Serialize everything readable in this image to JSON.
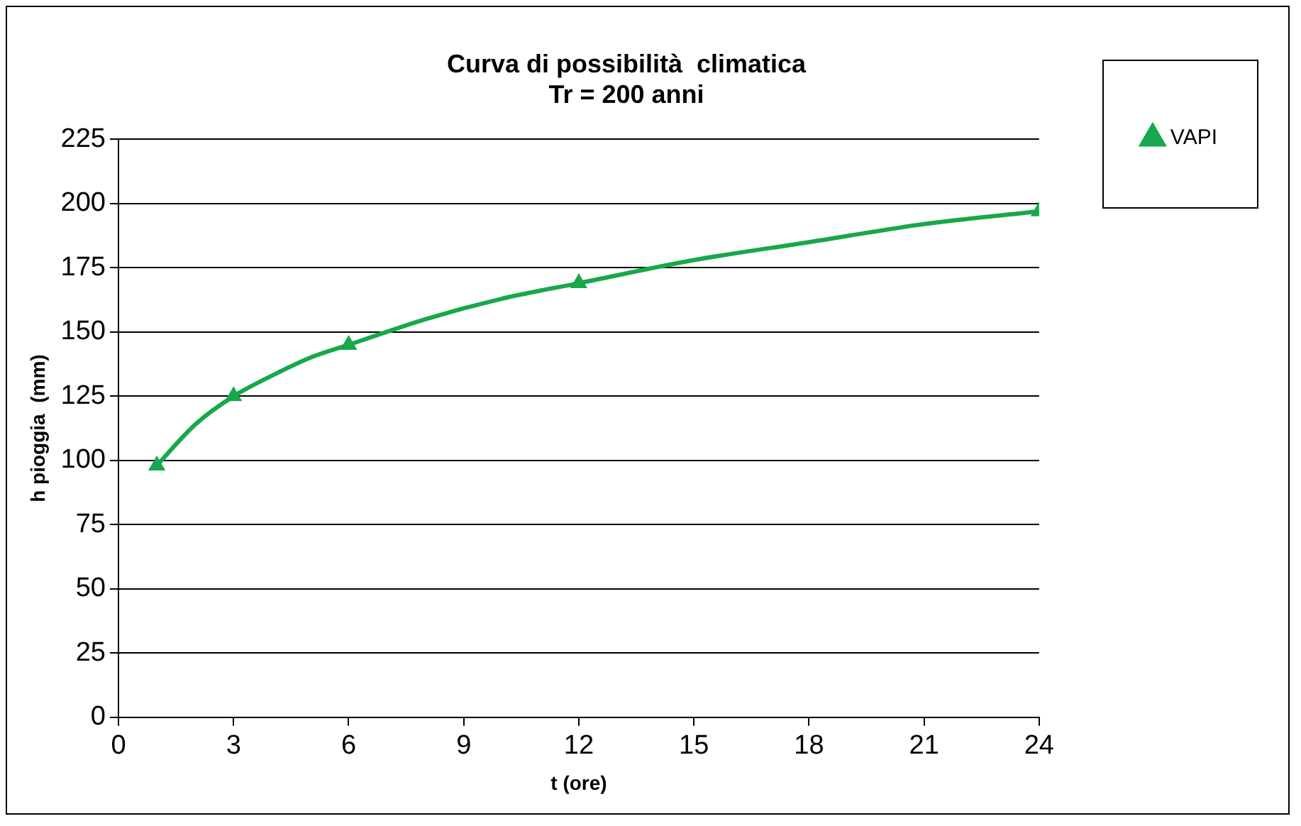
{
  "chart_data": {
    "type": "scatter",
    "title": "Curva di possibilità  climatica\nTr = 200 anni",
    "xlabel": "t (ore)",
    "ylabel": "h pioggia  (mm)",
    "series": [
      {
        "name": "VAPI",
        "type": "scatter",
        "color": "#17a84b",
        "marker": "triangle",
        "x": [
          1,
          3,
          6,
          12,
          24
        ],
        "values": [
          98,
          125,
          145,
          169,
          197
        ]
      },
      {
        "type": "line",
        "color": "#17a84b",
        "marker": "none",
        "x": [
          1,
          2,
          3,
          4,
          5,
          6,
          8,
          10,
          12,
          15,
          18,
          21,
          24
        ],
        "values": [
          98,
          114,
          125,
          133,
          140,
          145,
          155,
          163,
          169,
          178,
          185,
          192,
          197
        ]
      }
    ],
    "xlim": [
      0,
      24
    ],
    "xticks": [
      0,
      3,
      6,
      9,
      12,
      15,
      18,
      21,
      24
    ],
    "ylim": [
      0,
      225
    ],
    "yticks": [
      0,
      25,
      50,
      75,
      100,
      125,
      150,
      175,
      200,
      225
    ],
    "grid": "y",
    "legend": "right"
  }
}
